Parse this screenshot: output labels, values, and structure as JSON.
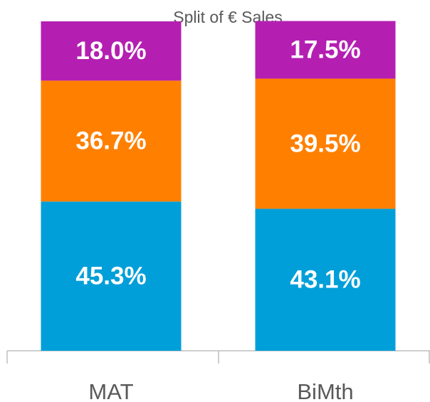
{
  "chart_data": {
    "type": "stacked_bar",
    "title": "Split of € Sales",
    "categories": [
      "MAT",
      "BiMth"
    ],
    "series": [
      {
        "color": "#009fd9",
        "values": [
          45.3,
          43.1
        ],
        "value_labels": [
          "45.3%",
          "43.1%"
        ]
      },
      {
        "color": "#ff8000",
        "values": [
          36.7,
          39.5
        ],
        "value_labels": [
          "36.7%",
          "39.5%"
        ]
      },
      {
        "color": "#b41fb2",
        "values": [
          18.0,
          17.5
        ],
        "value_labels": [
          "18.0%",
          "17.5%"
        ]
      }
    ],
    "ylim": [
      0,
      100
    ]
  }
}
